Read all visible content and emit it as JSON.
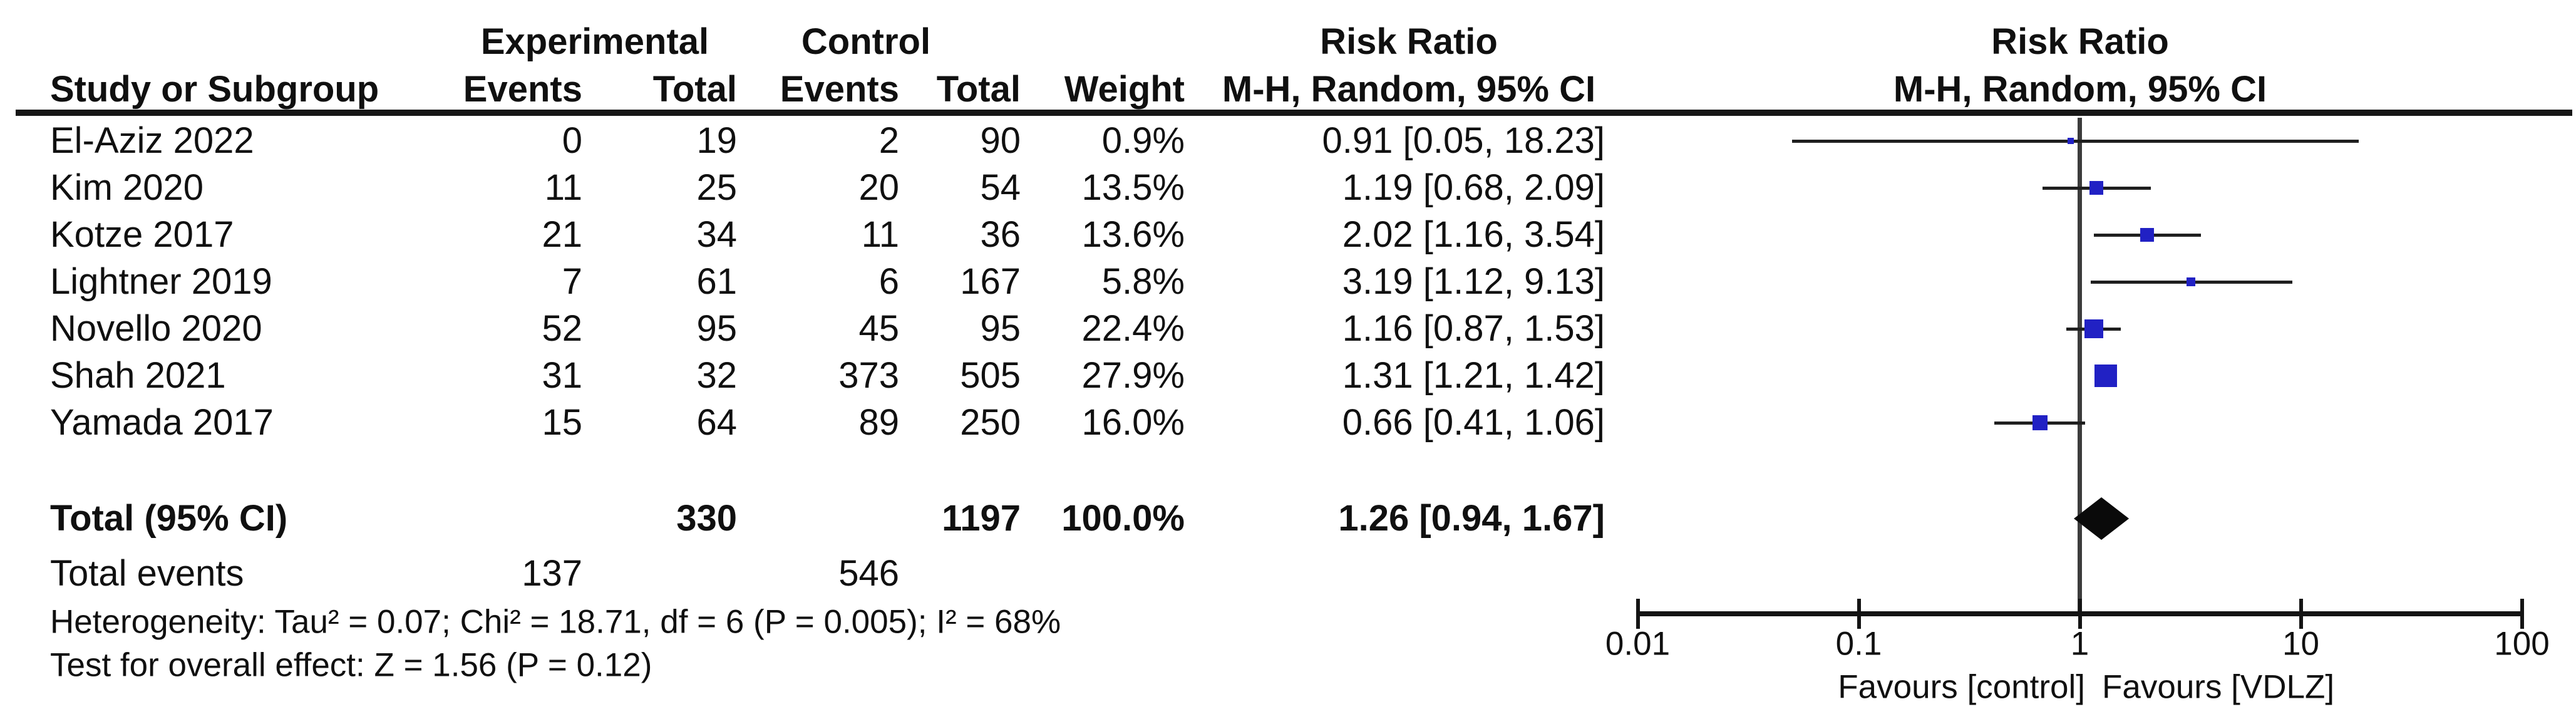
{
  "header": {
    "study": "Study or Subgroup",
    "experimental": "Experimental",
    "control": "Control",
    "events1": "Events",
    "total1": "Total",
    "events2": "Events",
    "total2": "Total",
    "weight": "Weight",
    "risk_ratio_text_col": "Risk Ratio",
    "method_text_col": "M-H, Random, 95% CI",
    "risk_ratio_plot_col": "Risk Ratio",
    "method_plot_col": "M-H, Random, 95% CI"
  },
  "chart_data": {
    "type": "forest",
    "effect_measure": "Risk Ratio",
    "model": "M-H, Random, 95% CI",
    "studies": [
      {
        "name": "El-Aziz 2022",
        "exp_events": "0",
        "exp_total": "19",
        "ctrl_events": "2",
        "ctrl_total": "90",
        "weight": "0.9%",
        "weight_pct": 0.9,
        "rr": 0.91,
        "ci_low": 0.05,
        "ci_high": 18.23,
        "label": "0.91 [0.05, 18.23]"
      },
      {
        "name": "Kim 2020",
        "exp_events": "11",
        "exp_total": "25",
        "ctrl_events": "20",
        "ctrl_total": "54",
        "weight": "13.5%",
        "weight_pct": 13.5,
        "rr": 1.19,
        "ci_low": 0.68,
        "ci_high": 2.09,
        "label": "1.19 [0.68, 2.09]"
      },
      {
        "name": "Kotze 2017",
        "exp_events": "21",
        "exp_total": "34",
        "ctrl_events": "11",
        "ctrl_total": "36",
        "weight": "13.6%",
        "weight_pct": 13.6,
        "rr": 2.02,
        "ci_low": 1.16,
        "ci_high": 3.54,
        "label": "2.02 [1.16, 3.54]"
      },
      {
        "name": "Lightner 2019",
        "exp_events": "7",
        "exp_total": "61",
        "ctrl_events": "6",
        "ctrl_total": "167",
        "weight": "5.8%",
        "weight_pct": 5.8,
        "rr": 3.19,
        "ci_low": 1.12,
        "ci_high": 9.13,
        "label": "3.19 [1.12, 9.13]"
      },
      {
        "name": "Novello 2020",
        "exp_events": "52",
        "exp_total": "95",
        "ctrl_events": "45",
        "ctrl_total": "95",
        "weight": "22.4%",
        "weight_pct": 22.4,
        "rr": 1.16,
        "ci_low": 0.87,
        "ci_high": 1.53,
        "label": "1.16 [0.87, 1.53]"
      },
      {
        "name": "Shah 2021",
        "exp_events": "31",
        "exp_total": "32",
        "ctrl_events": "373",
        "ctrl_total": "505",
        "weight": "27.9%",
        "weight_pct": 27.9,
        "rr": 1.31,
        "ci_low": 1.21,
        "ci_high": 1.42,
        "label": "1.31 [1.21, 1.42]"
      },
      {
        "name": "Yamada 2017",
        "exp_events": "15",
        "exp_total": "64",
        "ctrl_events": "89",
        "ctrl_total": "250",
        "weight": "16.0%",
        "weight_pct": 16.0,
        "rr": 0.66,
        "ci_low": 0.41,
        "ci_high": 1.06,
        "label": "0.66 [0.41, 1.06]"
      }
    ],
    "total": {
      "label": "Total (95% CI)",
      "exp_total": "330",
      "ctrl_total": "1197",
      "weight": "100.0%",
      "rr": 1.26,
      "ci_low": 0.94,
      "ci_high": 1.67,
      "ci_label": "1.26 [0.94, 1.67]"
    },
    "total_events": {
      "label": "Total events",
      "experimental": "137",
      "control": "546"
    },
    "heterogeneity": "Heterogeneity: Tau² = 0.07; Chi² = 18.71, df = 6 (P = 0.005); I² = 68%",
    "overall_effect": "Test for overall effect: Z = 1.56 (P = 0.12)",
    "axis": {
      "scale": "log",
      "ticks": [
        "0.01",
        "0.1",
        "1",
        "10",
        "100"
      ],
      "tick_values": [
        0.01,
        0.1,
        1,
        10,
        100
      ],
      "favours_left": "Favours [control]",
      "favours_right": "Favours [VDLZ]"
    },
    "colors": {
      "marker": "#2121c4",
      "ci_line": "#1f1f1f",
      "diamond": "#0a0a0a",
      "axis": "#141414",
      "centerline": "#3c3c3c"
    }
  }
}
